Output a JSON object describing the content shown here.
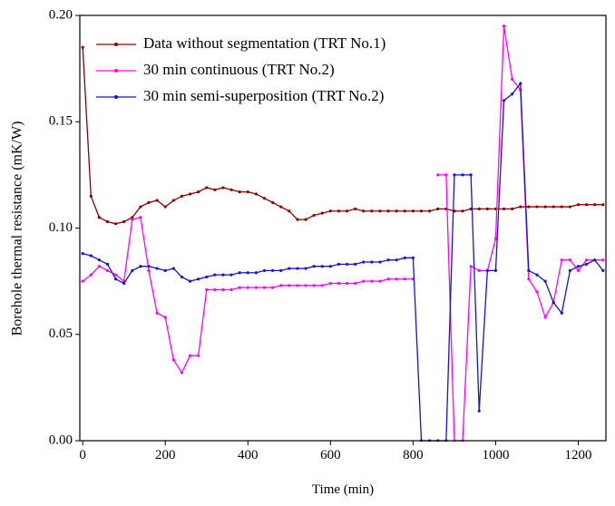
{
  "chart_data": {
    "type": "line",
    "xlabel": "Time (min)",
    "ylabel": "Borehole thermal resistance (mK/W)",
    "xlim": [
      -7,
      1267
    ],
    "ylim": [
      0,
      0.2
    ],
    "xticks": [
      0,
      200,
      400,
      600,
      800,
      1000,
      1200
    ],
    "yticks": [
      {
        "value": 0,
        "label": "0.00"
      },
      {
        "value": 0.05,
        "label": "0.05"
      },
      {
        "value": 0.1,
        "label": "0.10"
      },
      {
        "value": 0.15,
        "label": "0.15"
      },
      {
        "value": 0.2,
        "label": "0.20"
      }
    ],
    "legend": "upper left",
    "x": [
      0,
      20,
      40,
      60,
      80,
      100,
      120,
      140,
      160,
      180,
      200,
      220,
      240,
      260,
      280,
      300,
      320,
      340,
      360,
      380,
      400,
      420,
      440,
      460,
      480,
      500,
      520,
      540,
      560,
      580,
      600,
      620,
      640,
      660,
      680,
      700,
      720,
      740,
      760,
      780,
      800,
      820,
      840,
      860,
      880,
      900,
      920,
      940,
      960,
      980,
      1000,
      1020,
      1040,
      1060,
      1080,
      1100,
      1120,
      1140,
      1160,
      1180,
      1200,
      1220,
      1240,
      1260
    ],
    "series": [
      {
        "name": "Data without segmentation (TRT No.1)",
        "color": "#8b0000",
        "values": [
          0.185,
          0.115,
          0.105,
          0.103,
          0.102,
          0.103,
          0.105,
          0.11,
          0.112,
          0.113,
          0.11,
          0.113,
          0.115,
          0.116,
          0.117,
          0.119,
          0.118,
          0.119,
          0.118,
          0.117,
          0.117,
          0.116,
          0.114,
          0.112,
          0.11,
          0.108,
          0.104,
          0.104,
          0.106,
          0.107,
          0.108,
          0.108,
          0.108,
          0.109,
          0.108,
          0.108,
          0.108,
          0.108,
          0.108,
          0.108,
          0.108,
          0.108,
          0.108,
          0.109,
          0.109,
          0.108,
          0.108,
          0.109,
          0.109,
          0.109,
          0.109,
          0.109,
          0.109,
          0.11,
          0.11,
          0.11,
          0.11,
          0.11,
          0.11,
          0.11,
          0.111,
          0.111,
          0.111,
          0.111
        ]
      },
      {
        "name": "30 min continuous (TRT No.2)",
        "color": "#ff00ff",
        "values": [
          0.075,
          0.078,
          0.082,
          0.08,
          0.078,
          0.075,
          0.104,
          0.105,
          0.08,
          0.06,
          0.058,
          0.038,
          0.032,
          0.04,
          0.04,
          0.071,
          0.071,
          0.071,
          0.071,
          0.072,
          0.072,
          0.072,
          0.072,
          0.072,
          0.073,
          0.073,
          0.073,
          0.073,
          0.073,
          0.073,
          0.074,
          0.074,
          0.074,
          0.074,
          0.075,
          0.075,
          0.075,
          0.076,
          0.076,
          0.076,
          0.076,
          null,
          null,
          0.125,
          0.125,
          0,
          0,
          0.082,
          0.08,
          0.08,
          0.095,
          0.195,
          0.17,
          0.165,
          0.076,
          0.07,
          0.058,
          0.065,
          0.085,
          0.085,
          0.08,
          0.085,
          0.085,
          0.085
        ]
      },
      {
        "name": "30 min semi-superposition (TRT No.2)",
        "color": "#1515cc",
        "values": [
          0.088,
          0.087,
          0.085,
          0.083,
          0.076,
          0.074,
          0.08,
          0.082,
          0.082,
          0.081,
          0.08,
          0.081,
          0.077,
          0.075,
          0.076,
          0.077,
          0.078,
          0.078,
          0.078,
          0.079,
          0.079,
          0.079,
          0.08,
          0.08,
          0.08,
          0.081,
          0.081,
          0.081,
          0.082,
          0.082,
          0.082,
          0.083,
          0.083,
          0.083,
          0.084,
          0.084,
          0.084,
          0.085,
          0.085,
          0.086,
          0.086,
          0,
          0,
          0,
          0,
          0.125,
          0.125,
          0.125,
          0.014,
          0.08,
          0.08,
          0.16,
          0.163,
          0.168,
          0.08,
          0.078,
          0.075,
          0.065,
          0.06,
          0.08,
          0.082,
          0.083,
          0.085,
          0.08
        ]
      }
    ]
  }
}
